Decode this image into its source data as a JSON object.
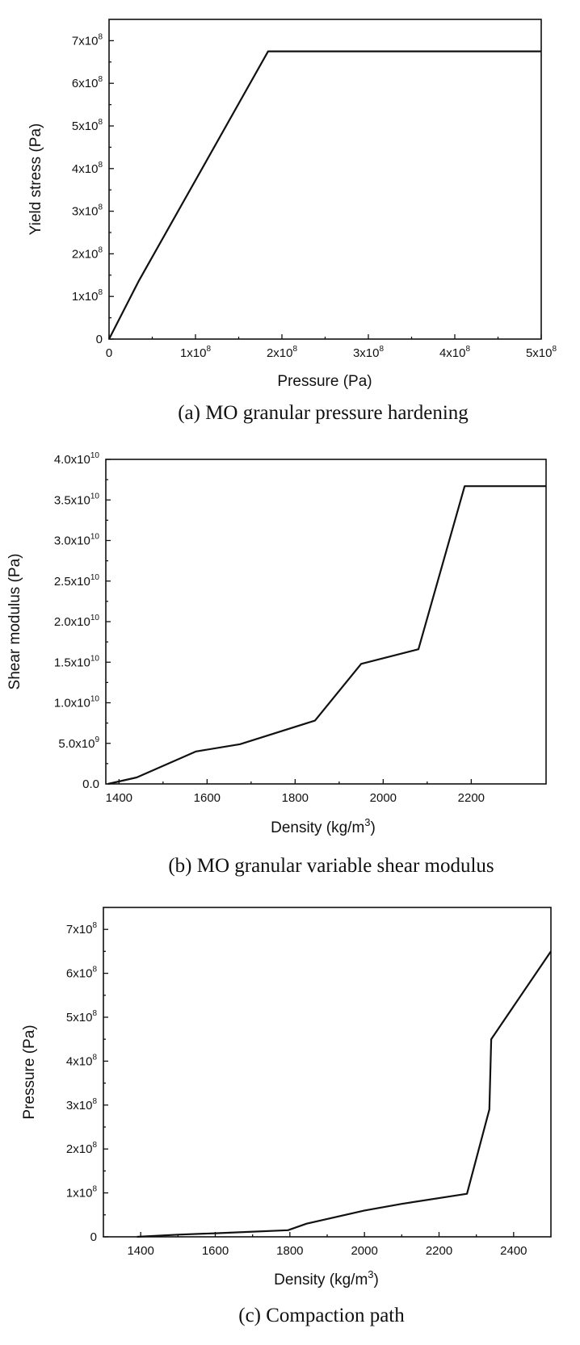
{
  "chart_data": [
    {
      "type": "line",
      "caption": "(a) MO granular pressure hardening",
      "xlabel": "Pressure (Pa)",
      "ylabel": "Yield stress (Pa)",
      "xlim": [
        0,
        500000000
      ],
      "ylim": [
        0,
        750000000
      ],
      "x_ticks": [
        {
          "value": 0,
          "mant": "0",
          "exp": ""
        },
        {
          "value": 100000000,
          "mant": "1x10",
          "exp": "8"
        },
        {
          "value": 200000000,
          "mant": "2x10",
          "exp": "8"
        },
        {
          "value": 300000000,
          "mant": "3x10",
          "exp": "8"
        },
        {
          "value": 400000000,
          "mant": "4x10",
          "exp": "8"
        },
        {
          "value": 500000000,
          "mant": "5x10",
          "exp": "8"
        }
      ],
      "y_ticks": [
        {
          "value": 0,
          "mant": "0",
          "exp": ""
        },
        {
          "value": 100000000,
          "mant": "1x10",
          "exp": "8"
        },
        {
          "value": 200000000,
          "mant": "2x10",
          "exp": "8"
        },
        {
          "value": 300000000,
          "mant": "3x10",
          "exp": "8"
        },
        {
          "value": 400000000,
          "mant": "4x10",
          "exp": "8"
        },
        {
          "value": 500000000,
          "mant": "5x10",
          "exp": "8"
        },
        {
          "value": 600000000,
          "mant": "6x10",
          "exp": "8"
        },
        {
          "value": 700000000,
          "mant": "7x10",
          "exp": "8"
        }
      ],
      "series": [
        {
          "name": "yield stress",
          "x": [
            0,
            34000000,
            184000000,
            500000000
          ],
          "y": [
            0,
            135000000,
            675000000,
            675000000
          ]
        }
      ]
    },
    {
      "type": "line",
      "caption": "(b) MO granular variable shear modulus",
      "xlabel": "Density (kg/m",
      "xlabel_sup": "3",
      "xlabel_end": ")",
      "ylabel": "Shear modulus (Pa)",
      "xlim": [
        1370,
        2370
      ],
      "ylim": [
        0,
        40000000000
      ],
      "x_ticks": [
        {
          "value": 1400,
          "mant": "1400",
          "exp": ""
        },
        {
          "value": 1600,
          "mant": "1600",
          "exp": ""
        },
        {
          "value": 1800,
          "mant": "1800",
          "exp": ""
        },
        {
          "value": 2000,
          "mant": "2000",
          "exp": ""
        },
        {
          "value": 2200,
          "mant": "2200",
          "exp": ""
        }
      ],
      "y_ticks": [
        {
          "value": 0,
          "mant": "0.0",
          "exp": ""
        },
        {
          "value": 5000000000,
          "mant": "5.0x10",
          "exp": "9"
        },
        {
          "value": 10000000000,
          "mant": "1.0x10",
          "exp": "10"
        },
        {
          "value": 15000000000,
          "mant": "1.5x10",
          "exp": "10"
        },
        {
          "value": 20000000000,
          "mant": "2.0x10",
          "exp": "10"
        },
        {
          "value": 25000000000,
          "mant": "2.5x10",
          "exp": "10"
        },
        {
          "value": 30000000000,
          "mant": "3.0x10",
          "exp": "10"
        },
        {
          "value": 35000000000,
          "mant": "3.5x10",
          "exp": "10"
        },
        {
          "value": 40000000000,
          "mant": "4.0x10",
          "exp": "10"
        }
      ],
      "series": [
        {
          "name": "shear modulus",
          "x": [
            1375,
            1440,
            1575,
            1675,
            1845,
            1950,
            2080,
            2185,
            2370
          ],
          "y": [
            0,
            800000000,
            4000000000,
            4900000000,
            7800000000,
            14800000000,
            16600000000,
            36700000000,
            36700000000
          ]
        }
      ]
    },
    {
      "type": "line",
      "caption": "(c) Compaction path",
      "xlabel": "Density (kg/m",
      "xlabel_sup": "3",
      "xlabel_end": ")",
      "ylabel": "Pressure (Pa)",
      "xlim": [
        1300,
        2500
      ],
      "ylim": [
        0,
        750000000
      ],
      "x_ticks": [
        {
          "value": 1400,
          "mant": "1400",
          "exp": ""
        },
        {
          "value": 1600,
          "mant": "1600",
          "exp": ""
        },
        {
          "value": 1800,
          "mant": "1800",
          "exp": ""
        },
        {
          "value": 2000,
          "mant": "2000",
          "exp": ""
        },
        {
          "value": 2200,
          "mant": "2200",
          "exp": ""
        },
        {
          "value": 2400,
          "mant": "2400",
          "exp": ""
        }
      ],
      "y_ticks": [
        {
          "value": 0,
          "mant": "0",
          "exp": ""
        },
        {
          "value": 100000000,
          "mant": "1x10",
          "exp": "8"
        },
        {
          "value": 200000000,
          "mant": "2x10",
          "exp": "8"
        },
        {
          "value": 300000000,
          "mant": "3x10",
          "exp": "8"
        },
        {
          "value": 400000000,
          "mant": "4x10",
          "exp": "8"
        },
        {
          "value": 500000000,
          "mant": "5x10",
          "exp": "8"
        },
        {
          "value": 600000000,
          "mant": "6x10",
          "exp": "8"
        },
        {
          "value": 700000000,
          "mant": "7x10",
          "exp": "8"
        }
      ],
      "series": [
        {
          "name": "compaction path",
          "x": [
            1390,
            1500,
            1600,
            1795,
            1845,
            2000,
            2100,
            2275,
            2335,
            2340,
            2500
          ],
          "y": [
            0,
            5000000,
            8000000,
            15000000,
            30000000,
            60000000,
            75000000,
            98000000,
            290000000,
            450000000,
            650000000
          ]
        }
      ]
    }
  ]
}
